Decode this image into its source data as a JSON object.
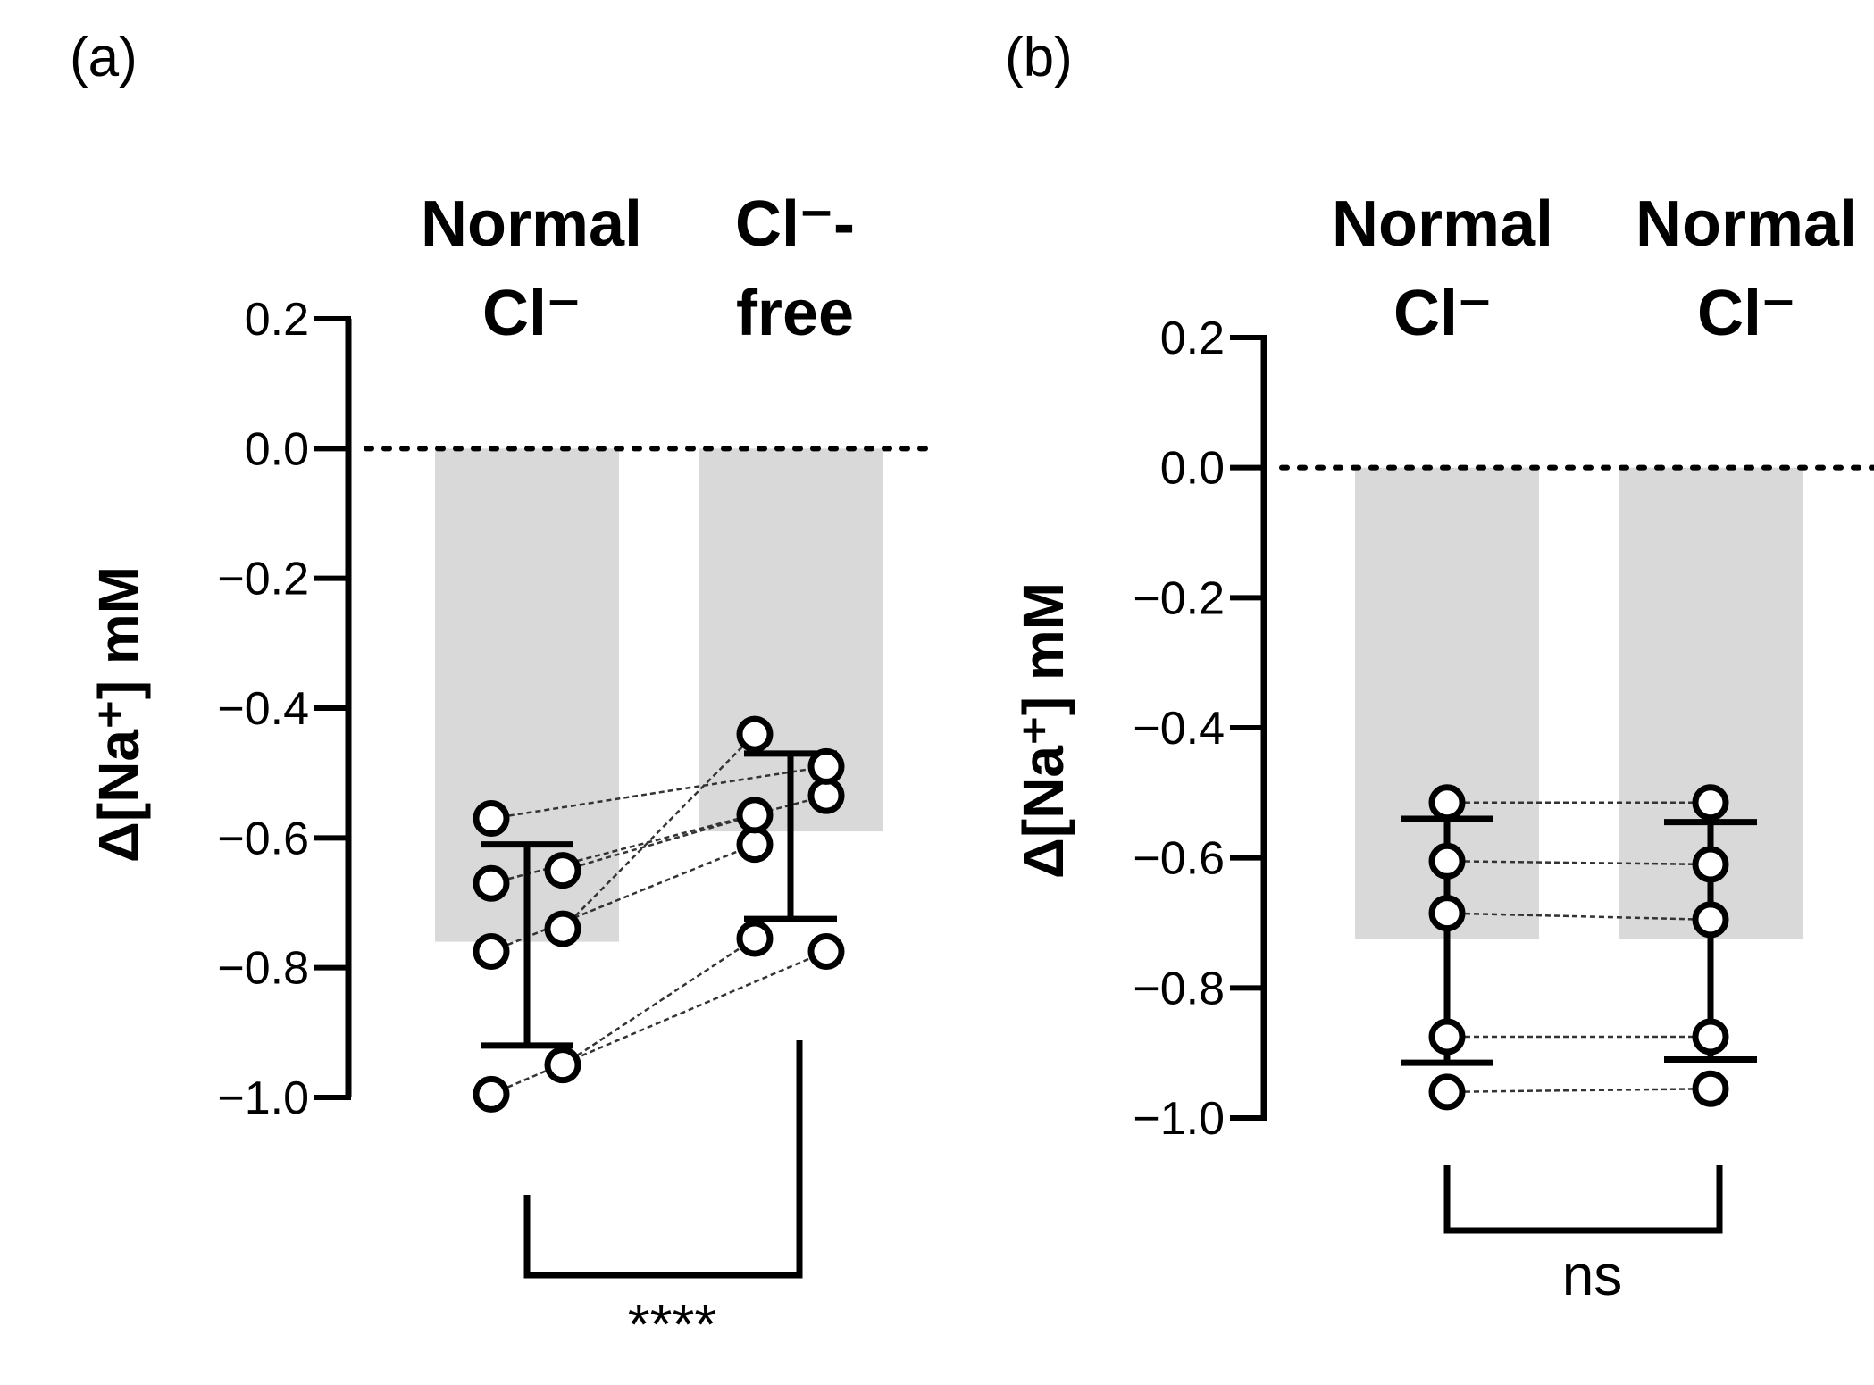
{
  "chart_data": [
    {
      "panel": "(a)",
      "type": "bar",
      "ylabel": "Δ[Na⁺] mM",
      "ylim": [
        -1.0,
        0.2
      ],
      "yticks": [
        0.2,
        0.0,
        -0.2,
        -0.4,
        -0.6,
        -0.8,
        -1.0
      ],
      "ytick_labels": [
        "0.2",
        "0.0",
        "−0.2",
        "−0.4",
        "−0.6",
        "−0.8",
        "−1.0"
      ],
      "zero_line": "dotted",
      "categories": [
        {
          "line1": "Normal",
          "line2": "Cl⁻"
        },
        {
          "line1": "Cl⁻-",
          "line2": "free"
        }
      ],
      "bar_values": [
        -0.76,
        -0.59
      ],
      "error_bars": [
        [
          -0.92,
          -0.61
        ],
        [
          -0.725,
          -0.47
        ]
      ],
      "points": [
        [
          -0.57,
          -0.65,
          -0.67,
          -0.74,
          -0.775,
          -0.95,
          -0.995
        ],
        [
          -0.44,
          -0.535,
          -0.61,
          -0.49,
          -0.565,
          -0.775,
          -0.755
        ]
      ],
      "pairs": [
        [
          -0.57,
          -0.49
        ],
        [
          -0.65,
          -0.565
        ],
        [
          -0.67,
          -0.535
        ],
        [
          -0.74,
          -0.44
        ],
        [
          -0.775,
          -0.61
        ],
        [
          -0.95,
          -0.755
        ],
        [
          -0.995,
          -0.775
        ]
      ],
      "significance": "****"
    },
    {
      "panel": "(b)",
      "type": "bar",
      "ylabel": "Δ[Na⁺] mM",
      "ylim": [
        -1.0,
        0.2
      ],
      "yticks": [
        0.2,
        0.0,
        -0.2,
        -0.4,
        -0.6,
        -0.8,
        -1.0
      ],
      "ytick_labels": [
        "0.2",
        "0.0",
        "−0.2",
        "−0.4",
        "−0.6",
        "−0.8",
        "−1.0"
      ],
      "zero_line": "dotted",
      "categories": [
        {
          "line1": "Normal",
          "line2": "Cl⁻"
        },
        {
          "line1": "Normal",
          "line2": "Cl⁻"
        }
      ],
      "bar_values": [
        -0.725,
        -0.725
      ],
      "error_bars": [
        [
          -0.915,
          -0.54
        ],
        [
          -0.91,
          -0.545
        ]
      ],
      "points": [
        [
          -0.515,
          -0.605,
          -0.685,
          -0.875,
          -0.96
        ],
        [
          -0.515,
          -0.61,
          -0.695,
          -0.875,
          -0.955
        ]
      ],
      "pairs": [
        [
          -0.515,
          -0.515
        ],
        [
          -0.605,
          -0.61
        ],
        [
          -0.685,
          -0.695
        ],
        [
          -0.875,
          -0.875
        ],
        [
          -0.96,
          -0.955
        ]
      ],
      "significance": "ns"
    }
  ]
}
